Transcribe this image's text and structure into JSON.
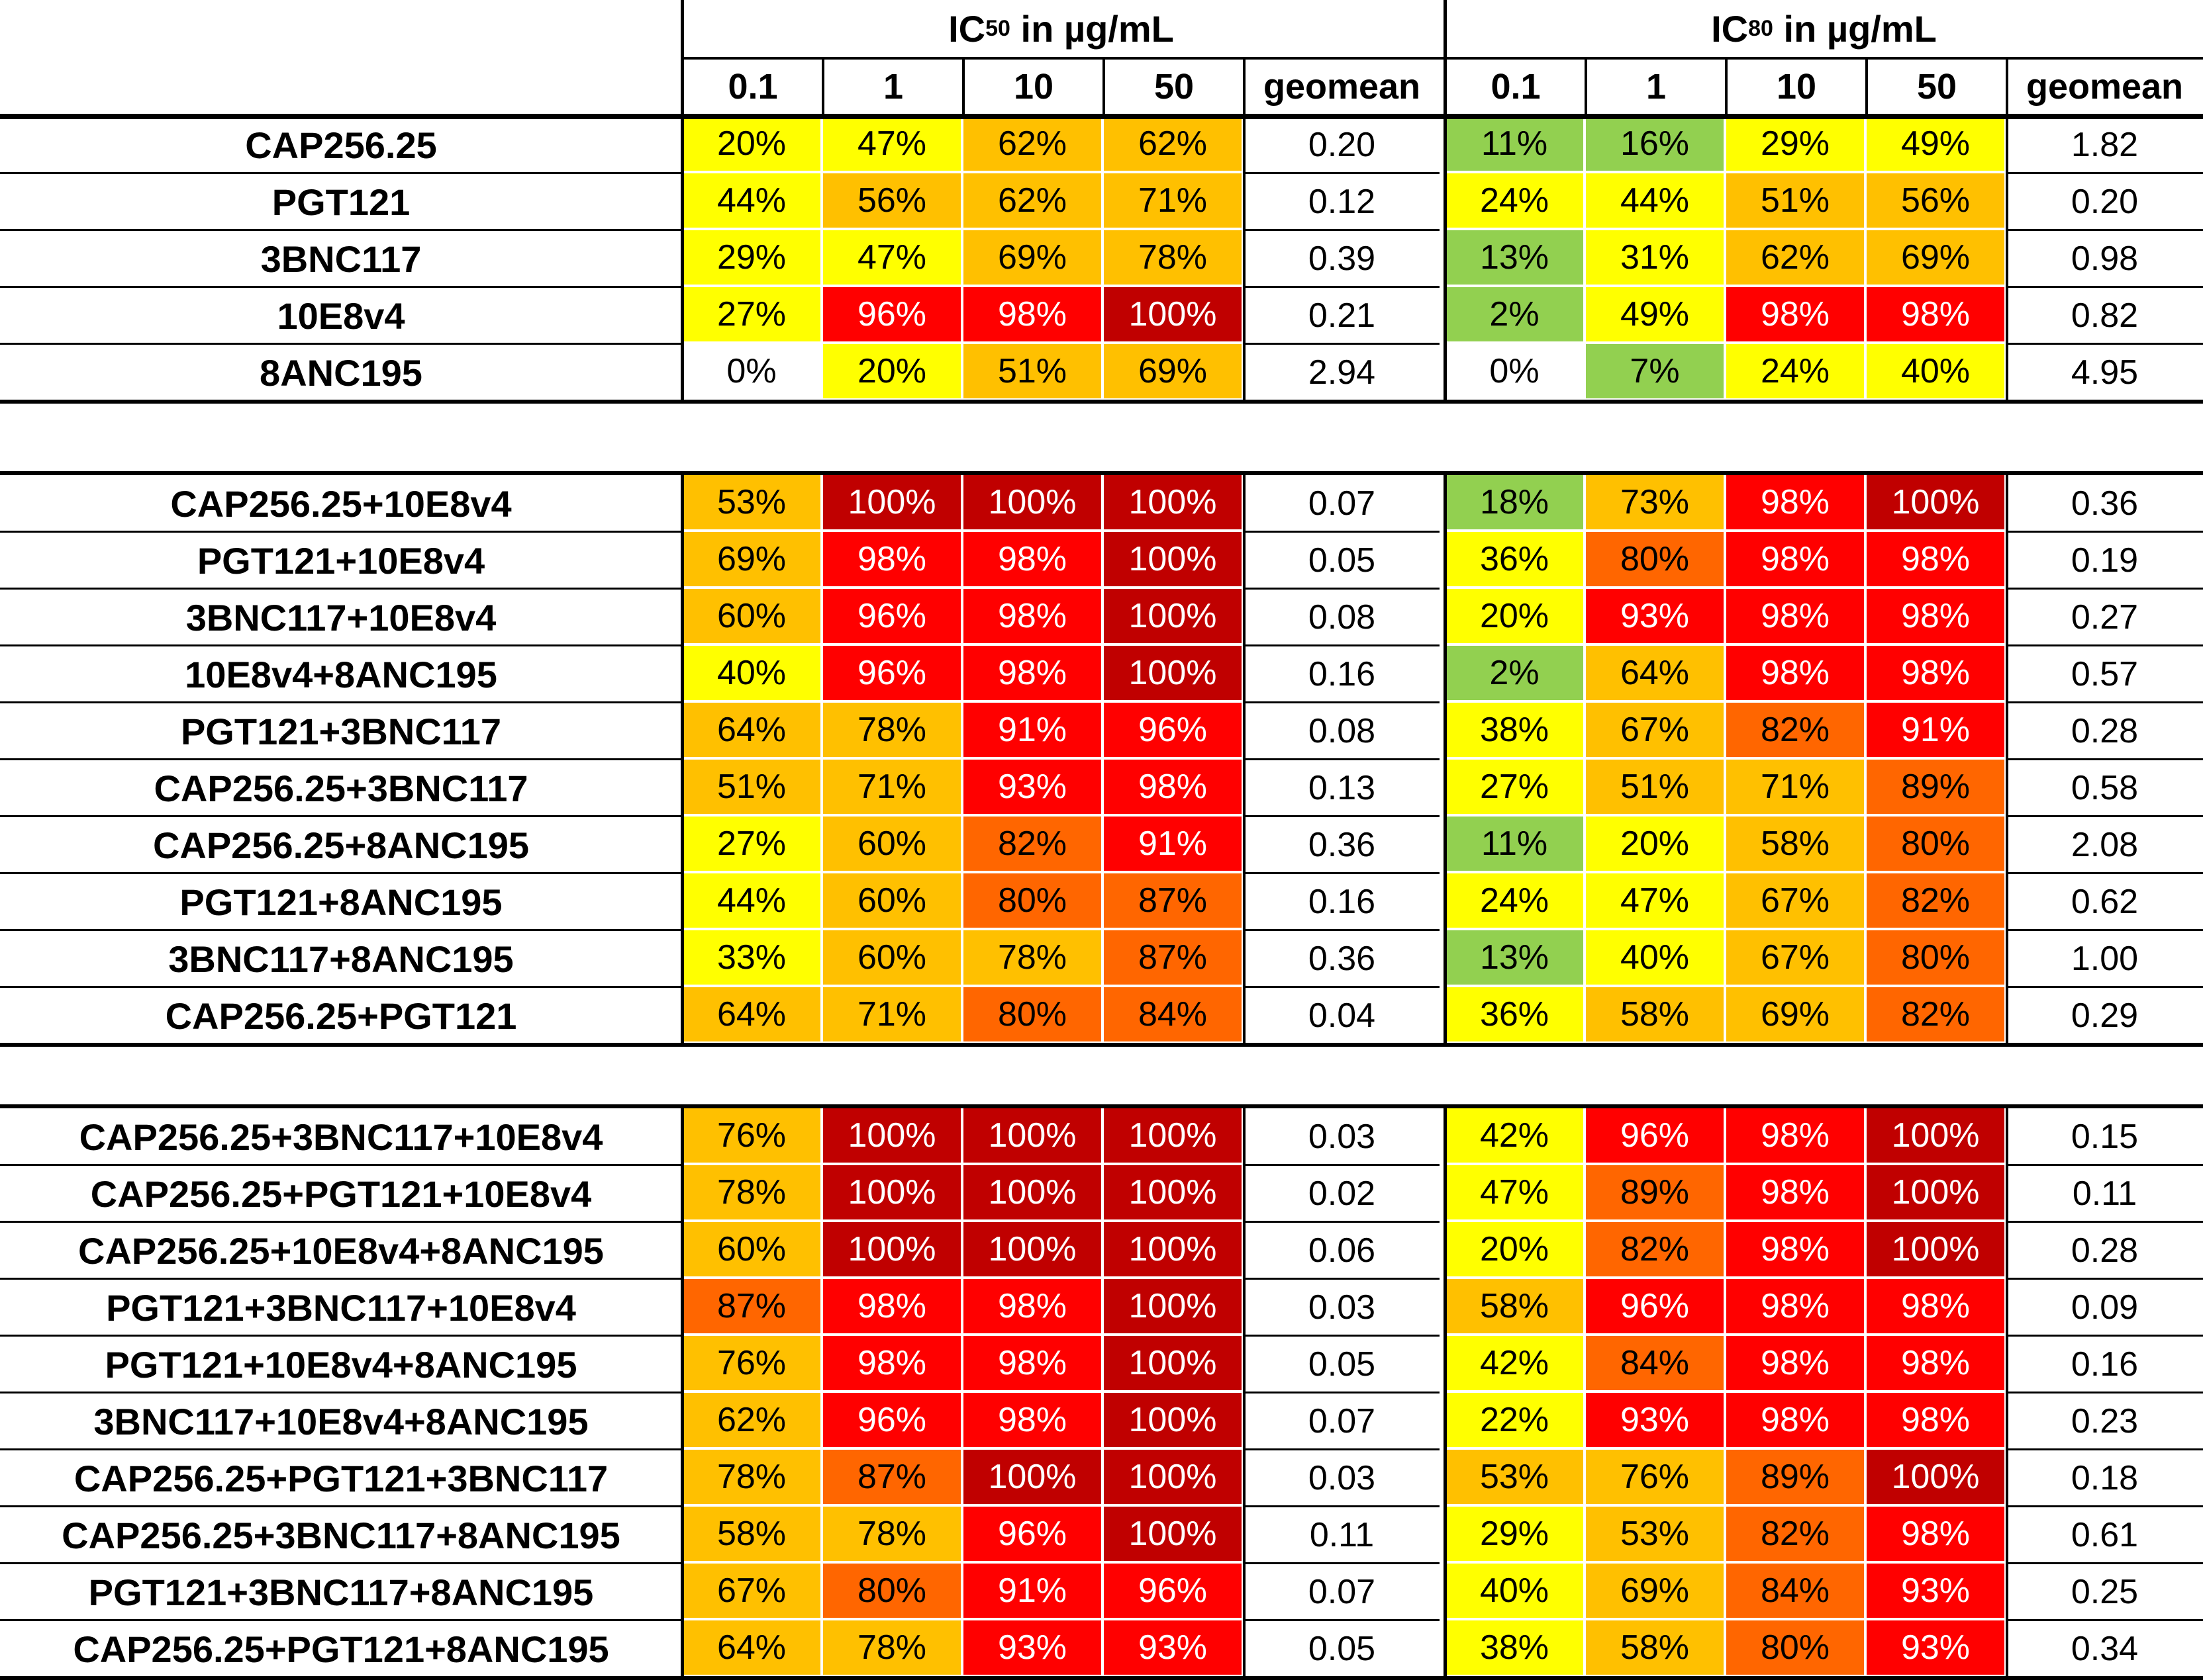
{
  "colors": {
    "white": "#ffffff",
    "green": "#92d050",
    "yellow": "#ffff00",
    "amber": "#ffc000",
    "orange": "#ff6600",
    "red": "#ff0000",
    "darkred": "#c00000"
  },
  "chart_data": {
    "type": "heatmap",
    "column_groups": [
      {
        "id": "ic50",
        "prefix": "IC",
        "subscript": "50",
        "suffix": " in µg/mL",
        "columns": [
          "0.1",
          "1",
          "10",
          "50"
        ],
        "geomean_label": "geomean"
      },
      {
        "id": "ic80",
        "prefix": "IC",
        "subscript": "80",
        "suffix": " in µg/mL",
        "columns": [
          "0.1",
          "1",
          "10",
          "50"
        ],
        "geomean_label": "geomean"
      }
    ],
    "sections": [
      {
        "rows": [
          {
            "label": "CAP256.25",
            "ic50": [
              "20%",
              "47%",
              "62%",
              "62%"
            ],
            "ic50_geomean": "0.20",
            "ic80": [
              "11%",
              "16%",
              "29%",
              "49%"
            ],
            "ic80_geomean": "1.82"
          },
          {
            "label": "PGT121",
            "ic50": [
              "44%",
              "56%",
              "62%",
              "71%"
            ],
            "ic50_geomean": "0.12",
            "ic80": [
              "24%",
              "44%",
              "51%",
              "56%"
            ],
            "ic80_geomean": "0.20"
          },
          {
            "label": "3BNC117",
            "ic50": [
              "29%",
              "47%",
              "69%",
              "78%"
            ],
            "ic50_geomean": "0.39",
            "ic80": [
              "13%",
              "31%",
              "62%",
              "69%"
            ],
            "ic80_geomean": "0.98"
          },
          {
            "label": "10E8v4",
            "ic50": [
              "27%",
              "96%",
              "98%",
              "100%"
            ],
            "ic50_geomean": "0.21",
            "ic80": [
              "2%",
              "49%",
              "98%",
              "98%"
            ],
            "ic80_geomean": "0.82"
          },
          {
            "label": "8ANC195",
            "ic50": [
              "0%",
              "20%",
              "51%",
              "69%"
            ],
            "ic50_geomean": "2.94",
            "ic80": [
              "0%",
              "7%",
              "24%",
              "40%"
            ],
            "ic80_geomean": "4.95"
          }
        ]
      },
      {
        "rows": [
          {
            "label": "CAP256.25+10E8v4",
            "ic50": [
              "53%",
              "100%",
              "100%",
              "100%"
            ],
            "ic50_geomean": "0.07",
            "ic80": [
              "18%",
              "73%",
              "98%",
              "100%"
            ],
            "ic80_geomean": "0.36"
          },
          {
            "label": "PGT121+10E8v4",
            "ic50": [
              "69%",
              "98%",
              "98%",
              "100%"
            ],
            "ic50_geomean": "0.05",
            "ic80": [
              "36%",
              "80%",
              "98%",
              "98%"
            ],
            "ic80_geomean": "0.19"
          },
          {
            "label": "3BNC117+10E8v4",
            "ic50": [
              "60%",
              "96%",
              "98%",
              "100%"
            ],
            "ic50_geomean": "0.08",
            "ic80": [
              "20%",
              "93%",
              "98%",
              "98%"
            ],
            "ic80_geomean": "0.27"
          },
          {
            "label": "10E8v4+8ANC195",
            "ic50": [
              "40%",
              "96%",
              "98%",
              "100%"
            ],
            "ic50_geomean": "0.16",
            "ic80": [
              "2%",
              "64%",
              "98%",
              "98%"
            ],
            "ic80_geomean": "0.57"
          },
          {
            "label": "PGT121+3BNC117",
            "ic50": [
              "64%",
              "78%",
              "91%",
              "96%"
            ],
            "ic50_geomean": "0.08",
            "ic80": [
              "38%",
              "67%",
              "82%",
              "91%"
            ],
            "ic80_geomean": "0.28"
          },
          {
            "label": "CAP256.25+3BNC117",
            "ic50": [
              "51%",
              "71%",
              "93%",
              "98%"
            ],
            "ic50_geomean": "0.13",
            "ic80": [
              "27%",
              "51%",
              "71%",
              "89%"
            ],
            "ic80_geomean": "0.58"
          },
          {
            "label": "CAP256.25+8ANC195",
            "ic50": [
              "27%",
              "60%",
              "82%",
              "91%"
            ],
            "ic50_geomean": "0.36",
            "ic80": [
              "11%",
              "20%",
              "58%",
              "80%"
            ],
            "ic80_geomean": "2.08"
          },
          {
            "label": "PGT121+8ANC195",
            "ic50": [
              "44%",
              "60%",
              "80%",
              "87%"
            ],
            "ic50_geomean": "0.16",
            "ic80": [
              "24%",
              "47%",
              "67%",
              "82%"
            ],
            "ic80_geomean": "0.62"
          },
          {
            "label": "3BNC117+8ANC195",
            "ic50": [
              "33%",
              "60%",
              "78%",
              "87%"
            ],
            "ic50_geomean": "0.36",
            "ic80": [
              "13%",
              "40%",
              "67%",
              "80%"
            ],
            "ic80_geomean": "1.00"
          },
          {
            "label": "CAP256.25+PGT121",
            "ic50": [
              "64%",
              "71%",
              "80%",
              "84%"
            ],
            "ic50_geomean": "0.04",
            "ic80": [
              "36%",
              "58%",
              "69%",
              "82%"
            ],
            "ic80_geomean": "0.29"
          }
        ]
      },
      {
        "rows": [
          {
            "label": "CAP256.25+3BNC117+10E8v4",
            "ic50": [
              "76%",
              "100%",
              "100%",
              "100%"
            ],
            "ic50_geomean": "0.03",
            "ic80": [
              "42%",
              "96%",
              "98%",
              "100%"
            ],
            "ic80_geomean": "0.15"
          },
          {
            "label": "CAP256.25+PGT121+10E8v4",
            "ic50": [
              "78%",
              "100%",
              "100%",
              "100%"
            ],
            "ic50_geomean": "0.02",
            "ic80": [
              "47%",
              "89%",
              "98%",
              "100%"
            ],
            "ic80_geomean": "0.11"
          },
          {
            "label": "CAP256.25+10E8v4+8ANC195",
            "ic50": [
              "60%",
              "100%",
              "100%",
              "100%"
            ],
            "ic50_geomean": "0.06",
            "ic80": [
              "20%",
              "82%",
              "98%",
              "100%"
            ],
            "ic80_geomean": "0.28"
          },
          {
            "label": "PGT121+3BNC117+10E8v4",
            "ic50": [
              "87%",
              "98%",
              "98%",
              "100%"
            ],
            "ic50_geomean": "0.03",
            "ic80": [
              "58%",
              "96%",
              "98%",
              "98%"
            ],
            "ic80_geomean": "0.09"
          },
          {
            "label": "PGT121+10E8v4+8ANC195",
            "ic50": [
              "76%",
              "98%",
              "98%",
              "100%"
            ],
            "ic50_geomean": "0.05",
            "ic80": [
              "42%",
              "84%",
              "98%",
              "98%"
            ],
            "ic80_geomean": "0.16"
          },
          {
            "label": "3BNC117+10E8v4+8ANC195",
            "ic50": [
              "62%",
              "96%",
              "98%",
              "100%"
            ],
            "ic50_geomean": "0.07",
            "ic80": [
              "22%",
              "93%",
              "98%",
              "98%"
            ],
            "ic80_geomean": "0.23"
          },
          {
            "label": "CAP256.25+PGT121+3BNC117",
            "ic50": [
              "78%",
              "87%",
              "100%",
              "100%"
            ],
            "ic50_geomean": "0.03",
            "ic80": [
              "53%",
              "76%",
              "89%",
              "100%"
            ],
            "ic80_geomean": "0.18"
          },
          {
            "label": "CAP256.25+3BNC117+8ANC195",
            "ic50": [
              "58%",
              "78%",
              "96%",
              "100%"
            ],
            "ic50_geomean": "0.11",
            "ic80": [
              "29%",
              "53%",
              "82%",
              "98%"
            ],
            "ic80_geomean": "0.61"
          },
          {
            "label": "PGT121+3BNC117+8ANC195",
            "ic50": [
              "67%",
              "80%",
              "91%",
              "96%"
            ],
            "ic50_geomean": "0.07",
            "ic80": [
              "40%",
              "69%",
              "84%",
              "93%"
            ],
            "ic80_geomean": "0.25"
          },
          {
            "label": "CAP256.25+PGT121+8ANC195",
            "ic50": [
              "64%",
              "78%",
              "93%",
              "93%"
            ],
            "ic50_geomean": "0.05",
            "ic80": [
              "38%",
              "58%",
              "80%",
              "93%"
            ],
            "ic80_geomean": "0.34"
          }
        ]
      }
    ]
  }
}
